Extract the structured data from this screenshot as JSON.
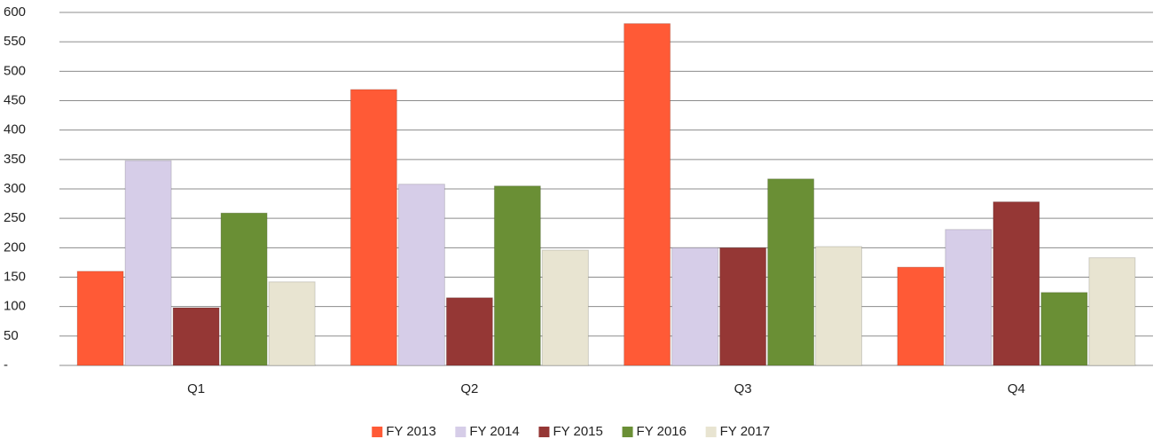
{
  "chart_data": {
    "type": "bar",
    "categories": [
      "Q1",
      "Q2",
      "Q3",
      "Q4"
    ],
    "series": [
      {
        "name": "FY 2013",
        "color": "#ff5a36",
        "values": [
          160,
          469,
          581,
          167
        ]
      },
      {
        "name": "FY 2014",
        "color": "#d6cde8",
        "values": [
          348,
          308,
          200,
          231
        ]
      },
      {
        "name": "FY 2015",
        "color": "#953735",
        "values": [
          98,
          115,
          200,
          278
        ]
      },
      {
        "name": "FY 2016",
        "color": "#6a8f35",
        "values": [
          259,
          305,
          317,
          124
        ]
      },
      {
        "name": "FY 2017",
        "color": "#e8e4d1",
        "values": [
          142,
          196,
          202,
          183
        ]
      }
    ],
    "ylim": [
      0,
      600
    ],
    "yticks": [
      {
        "value": 0,
        "label": "-"
      },
      50,
      100,
      150,
      200,
      250,
      300,
      350,
      400,
      450,
      500,
      550,
      600
    ],
    "grid": true,
    "legend": "bottom"
  }
}
